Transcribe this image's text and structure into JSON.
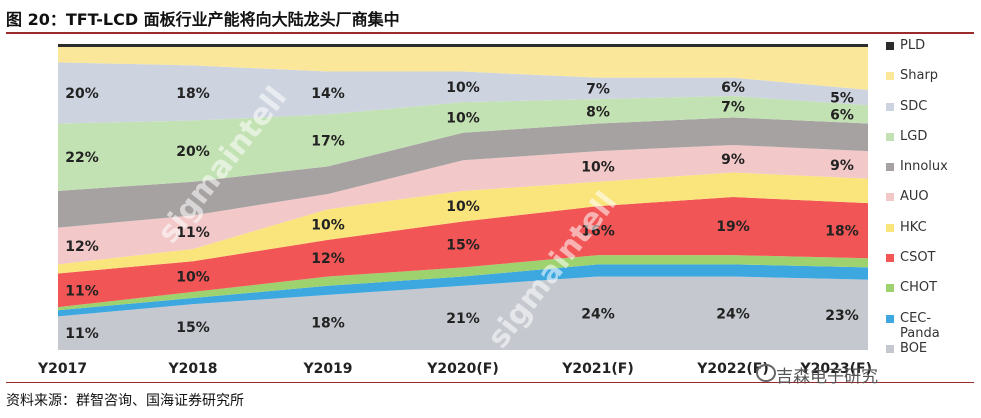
{
  "title": "图 20：TFT-LCD 面板行业产能将向大陆龙头厂商集中",
  "source": "资料来源：群智咨询、国海证券研究所",
  "watermark_text": "sigmaintell",
  "brand": "吉森电子研究",
  "chart_data": {
    "type": "area",
    "stacked": true,
    "percent": true,
    "categories": [
      "Y2017",
      "Y2018",
      "Y2019",
      "Y2020(F)",
      "Y2021(F)",
      "Y2022(F)",
      "Y2023(F)"
    ],
    "series": [
      {
        "name": "BOE",
        "color": "#c5c8cf",
        "values": [
          11,
          15,
          18,
          21,
          24,
          24,
          23
        ]
      },
      {
        "name": "CEC-Panda",
        "color": "#3da7e0",
        "values": [
          2,
          2,
          3,
          3,
          4,
          4,
          4
        ]
      },
      {
        "name": "CHOT",
        "color": "#9ed26e",
        "values": [
          1,
          2,
          3,
          3,
          3,
          3,
          3
        ]
      },
      {
        "name": "CSOT",
        "color": "#f25555",
        "values": [
          11,
          10,
          12,
          15,
          16,
          19,
          18
        ]
      },
      {
        "name": "HKC",
        "color": "#fae57d",
        "values": [
          3,
          4,
          10,
          10,
          8,
          8,
          8
        ]
      },
      {
        "name": "AUO",
        "color": "#f2c8c8",
        "values": [
          12,
          11,
          5,
          10,
          10,
          9,
          9
        ]
      },
      {
        "name": "Innolux",
        "color": "#a7a2a2",
        "values": [
          12,
          11,
          9,
          9,
          9,
          9,
          9
        ]
      },
      {
        "name": "LGD",
        "color": "#c3e2b3",
        "values": [
          22,
          20,
          17,
          10,
          8,
          7,
          6
        ]
      },
      {
        "name": "SDC",
        "color": "#cdd4e0",
        "values": [
          20,
          18,
          14,
          10,
          7,
          6,
          5
        ]
      },
      {
        "name": "Sharp",
        "color": "#fbe79a",
        "values": [
          5,
          6,
          8,
          8,
          10,
          10,
          14
        ]
      },
      {
        "name": "PLD",
        "color": "#2c2c2c",
        "values": [
          1,
          1,
          1,
          1,
          1,
          1,
          1
        ]
      }
    ],
    "labels": [
      {
        "series": "BOE",
        "values": [
          "11%",
          "15%",
          "18%",
          "21%",
          "24%",
          "24%",
          "23%"
        ]
      },
      {
        "series": "CSOT",
        "values": [
          "11%",
          "10%",
          "12%",
          "15%",
          "16%",
          "19%",
          "18%"
        ]
      },
      {
        "series": "HKC",
        "values": [
          "",
          "",
          "10%",
          "10%",
          "",
          "",
          ""
        ]
      },
      {
        "series": "AUO",
        "values": [
          "12%",
          "11%",
          "",
          "",
          "10%",
          "9%",
          "9%"
        ]
      },
      {
        "series": "LGD",
        "values": [
          "22%",
          "20%",
          "17%",
          "10%",
          "8%",
          "7%",
          "6%"
        ]
      },
      {
        "series": "SDC",
        "values": [
          "20%",
          "18%",
          "14%",
          "10%",
          "7%",
          "6%",
          "5%"
        ]
      }
    ],
    "legend_order": [
      "PLD",
      "Sharp",
      "SDC",
      "LGD",
      "Innolux",
      "AUO",
      "HKC",
      "CSOT",
      "CHOT",
      "CEC-Panda",
      "BOE"
    ],
    "legend_position": "right",
    "ylim": [
      0,
      100
    ]
  }
}
